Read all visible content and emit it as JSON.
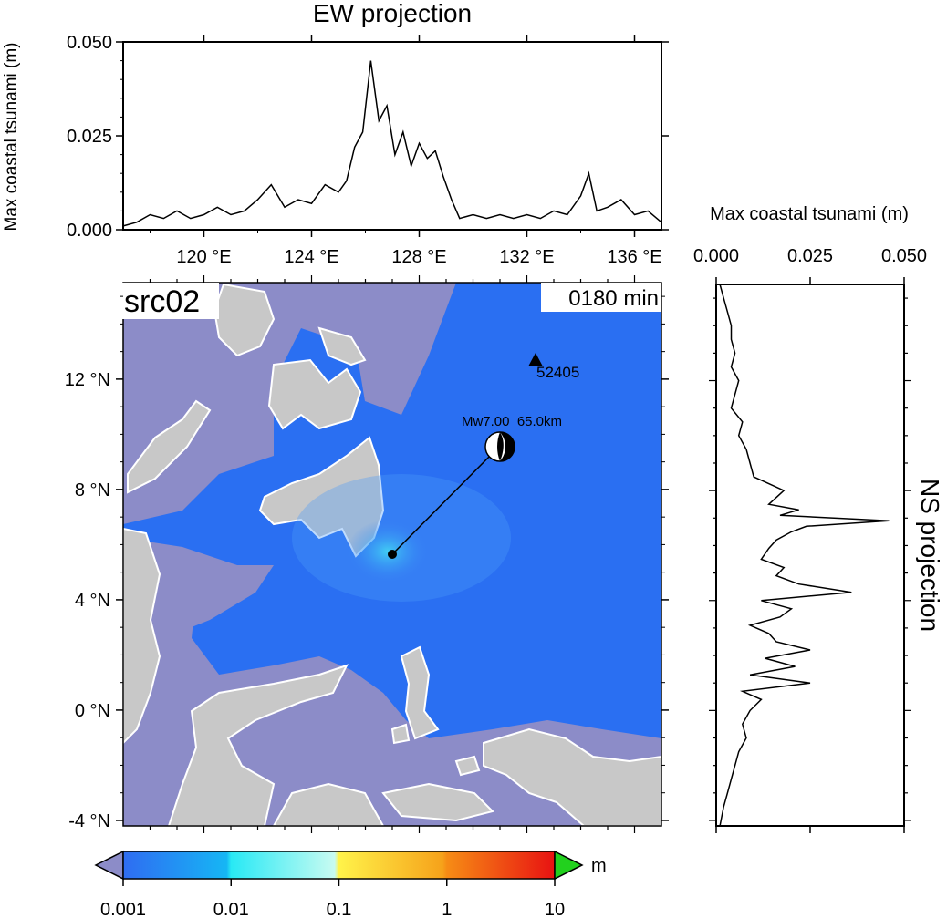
{
  "ew_panel": {
    "title": "EW projection",
    "ylabel": "Max coastal tsunami (m)",
    "y_ticks": [
      "0.000",
      "0.025",
      "0.050"
    ],
    "x_ticks": [
      "120 °E",
      "124 °E",
      "128 °E",
      "132 °E",
      "136 °E"
    ]
  },
  "ns_panel": {
    "title": "NS projection",
    "xlabel": "Max coastal tsunami (m)",
    "x_ticks": [
      "0.000",
      "0.025",
      "0.050"
    ]
  },
  "map": {
    "source_label": "src02",
    "time_label": "0180 min",
    "lat_ticks": [
      "12 °N",
      "8 °N",
      "4 °N",
      "0 °N",
      "-4 °N"
    ],
    "station_label": "52405",
    "event_label": "Mw7.00_65.0km",
    "colors": {
      "ocean": "#2a6ff2",
      "land": "#c8c8c8",
      "shelf": "#8c8cc8",
      "coast": "#ffffff"
    }
  },
  "colorbar": {
    "unit": "m",
    "tick_labels": [
      "0.001",
      "0.01",
      "0.1",
      "1",
      "10"
    ]
  },
  "chart_data": [
    {
      "type": "line",
      "title": "EW projection",
      "xlabel": "",
      "ylabel": "Max coastal tsunami (m)",
      "xlim": [
        117,
        137
      ],
      "ylim": [
        0,
        0.05
      ],
      "x": [
        117.0,
        117.5,
        118.0,
        118.5,
        119.0,
        119.5,
        120.0,
        120.5,
        121.0,
        121.5,
        122.0,
        122.5,
        123.0,
        123.5,
        124.0,
        124.5,
        125.0,
        125.3,
        125.6,
        125.9,
        126.2,
        126.5,
        126.8,
        127.1,
        127.4,
        127.7,
        128.0,
        128.3,
        128.6,
        128.9,
        129.2,
        129.5,
        130.0,
        130.5,
        131.0,
        131.5,
        132.0,
        132.5,
        133.0,
        133.5,
        134.0,
        134.3,
        134.6,
        135.0,
        135.5,
        136.0,
        136.5,
        137.0
      ],
      "y": [
        0.001,
        0.002,
        0.004,
        0.003,
        0.005,
        0.003,
        0.004,
        0.006,
        0.004,
        0.005,
        0.008,
        0.012,
        0.006,
        0.008,
        0.007,
        0.012,
        0.01,
        0.013,
        0.022,
        0.026,
        0.045,
        0.029,
        0.033,
        0.02,
        0.026,
        0.017,
        0.023,
        0.019,
        0.021,
        0.014,
        0.008,
        0.003,
        0.004,
        0.003,
        0.004,
        0.003,
        0.004,
        0.003,
        0.005,
        0.004,
        0.009,
        0.015,
        0.005,
        0.006,
        0.008,
        0.004,
        0.005,
        0.002
      ]
    },
    {
      "type": "line",
      "title": "NS projection",
      "xlabel": "Max coastal tsunami (m)",
      "ylabel": "",
      "xlim": [
        0,
        0.05
      ],
      "ylim": [
        -4.2,
        15.5
      ],
      "lat": [
        15.5,
        15.0,
        14.5,
        14.0,
        13.5,
        13.0,
        12.5,
        12.0,
        11.5,
        11.0,
        10.5,
        10.0,
        9.5,
        9.0,
        8.5,
        8.0,
        7.5,
        7.3,
        7.1,
        6.9,
        6.7,
        6.5,
        6.2,
        5.9,
        5.5,
        5.2,
        4.9,
        4.6,
        4.3,
        4.0,
        3.7,
        3.4,
        3.1,
        2.8,
        2.5,
        2.2,
        1.9,
        1.6,
        1.3,
        1.0,
        0.7,
        0.4,
        0.0,
        -0.5,
        -1.0,
        -1.5,
        -2.0,
        -2.5,
        -3.0,
        -3.5,
        -4.2
      ],
      "values": [
        0.001,
        0.002,
        0.003,
        0.004,
        0.004,
        0.005,
        0.004,
        0.006,
        0.005,
        0.004,
        0.007,
        0.006,
        0.008,
        0.009,
        0.01,
        0.018,
        0.014,
        0.022,
        0.017,
        0.046,
        0.024,
        0.02,
        0.016,
        0.014,
        0.012,
        0.018,
        0.016,
        0.022,
        0.036,
        0.012,
        0.02,
        0.017,
        0.009,
        0.014,
        0.016,
        0.025,
        0.013,
        0.021,
        0.009,
        0.025,
        0.007,
        0.012,
        0.009,
        0.007,
        0.008,
        0.006,
        0.005,
        0.004,
        0.003,
        0.002,
        0.001
      ]
    }
  ]
}
